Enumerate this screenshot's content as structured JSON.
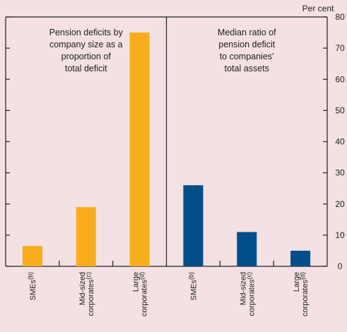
{
  "chart_data": {
    "type": "bar",
    "unit": "Per cent",
    "ylim": [
      0,
      80
    ],
    "y_ticks": [
      0,
      10,
      20,
      30,
      40,
      50,
      60,
      70,
      80
    ],
    "colors": {
      "panel_1": "#f7ad1c",
      "panel_2": "#004f8a",
      "axis": "#1f1f1f",
      "background": "#f3e1e3"
    },
    "panels": [
      {
        "title": [
          "Pension deficits by",
          "company size as a",
          "proportion of",
          "total deficit"
        ],
        "categories": [
          {
            "line1": "SMEs",
            "note1": "(b)",
            "line2": "",
            "note2": ""
          },
          {
            "line1": "Mid-sized",
            "note1": "",
            "line2": "corporates",
            "note2": "(c)"
          },
          {
            "line1": "Large",
            "note1": "",
            "line2": "corporates",
            "note2": "(d)"
          }
        ],
        "values": [
          6.5,
          19,
          75
        ]
      },
      {
        "title": [
          "Median ratio of",
          "pension deficit",
          "to companies’",
          "total assets"
        ],
        "categories": [
          {
            "line1": "SMEs",
            "note1": "(b)",
            "line2": "",
            "note2": ""
          },
          {
            "line1": "Mid-sized",
            "note1": "",
            "line2": "corporates",
            "note2": "(c)"
          },
          {
            "line1": "Large",
            "note1": "",
            "line2": "corporates",
            "note2": "(d)"
          }
        ],
        "values": [
          26,
          11,
          5
        ]
      }
    ]
  }
}
